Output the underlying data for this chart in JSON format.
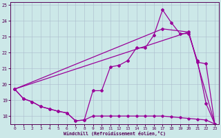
{
  "background_color": "#cce8e8",
  "grid_color": "#aabbcc",
  "line_color": "#990099",
  "xlim": [
    -0.5,
    23.5
  ],
  "ylim": [
    17.5,
    25.2
  ],
  "yticks": [
    18,
    19,
    20,
    21,
    22,
    23,
    24,
    25
  ],
  "xticks": [
    0,
    1,
    2,
    3,
    4,
    5,
    6,
    7,
    8,
    9,
    10,
    11,
    12,
    13,
    14,
    15,
    16,
    17,
    18,
    19,
    20,
    21,
    22,
    23
  ],
  "xlabel": "Windchill (Refroidissement éolien,°C)",
  "line1_x": [
    0,
    1,
    2,
    3,
    4,
    5,
    6,
    7,
    8,
    9,
    10,
    11,
    12,
    13,
    14,
    15,
    16,
    17,
    18,
    19,
    20,
    21,
    22,
    23
  ],
  "line1_y": [
    19.7,
    19.1,
    18.9,
    18.6,
    18.45,
    18.3,
    18.2,
    17.7,
    17.75,
    18.0,
    18.0,
    18.0,
    18.0,
    18.0,
    18.0,
    18.0,
    18.0,
    18.0,
    17.95,
    17.9,
    17.85,
    17.8,
    17.75,
    17.5
  ],
  "line2_x": [
    0,
    1,
    2,
    3,
    4,
    5,
    6,
    7,
    8,
    9,
    10,
    11,
    12,
    13,
    14,
    15,
    16,
    17,
    18,
    19,
    20,
    21,
    22,
    23
  ],
  "line2_y": [
    19.7,
    19.1,
    18.9,
    18.6,
    18.45,
    18.3,
    18.2,
    17.7,
    17.75,
    19.6,
    19.6,
    21.1,
    21.2,
    21.5,
    22.3,
    22.3,
    23.1,
    24.7,
    23.9,
    23.2,
    23.2,
    21.5,
    18.8,
    17.5
  ],
  "line3_x": [
    0,
    17,
    20,
    21,
    22,
    23
  ],
  "line3_y": [
    19.7,
    23.5,
    23.3,
    21.4,
    21.3,
    17.5
  ],
  "line4_x": [
    0,
    20,
    23
  ],
  "line4_y": [
    19.7,
    23.3,
    17.5
  ]
}
